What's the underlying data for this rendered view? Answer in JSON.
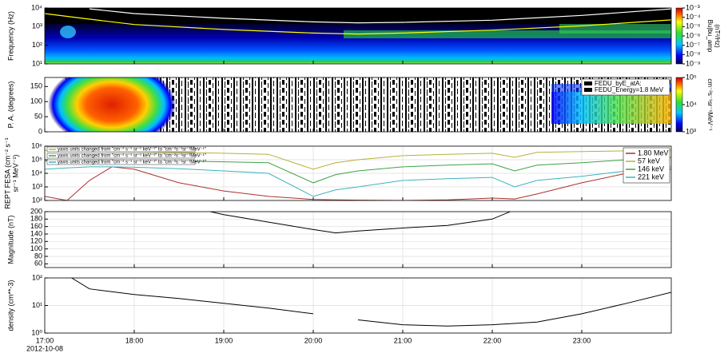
{
  "chart_data": [
    {
      "type": "spectrogram",
      "ylabel": [
        "Frequency (Hz)"
      ],
      "xlim": [
        17,
        24
      ],
      "xticks": [
        17,
        18,
        19,
        20,
        21,
        22,
        23
      ],
      "ylim": [
        10,
        10000
      ],
      "log_y": true,
      "yticks": [
        {
          "value": 10,
          "label": "10¹"
        },
        {
          "value": 100,
          "label": "10²"
        },
        {
          "value": 1000,
          "label": "10³"
        },
        {
          "value": 10000,
          "label": "10⁴"
        }
      ],
      "colorbar": {
        "label": [
          "Bu|bu_amp",
          "(nT²/Hz)"
        ],
        "zlim": [
          1e-09,
          0.001
        ],
        "zticks": [
          {
            "value": 1e-09,
            "label": "10⁻⁹"
          },
          {
            "value": 1e-08,
            "label": "10⁻⁸"
          },
          {
            "value": 1e-07,
            "label": "10⁻⁷"
          },
          {
            "value": 1e-06,
            "label": "10⁻⁶"
          },
          {
            "value": 1e-05,
            "label": "10⁻⁵"
          },
          {
            "value": 0.0001,
            "label": "10⁻⁴"
          },
          {
            "value": 0.001,
            "label": "10⁻³"
          }
        ]
      },
      "series": [
        {
          "color": "#ffffff",
          "x": [
            17.5,
            18,
            19,
            20,
            20.5,
            21,
            22,
            23,
            23.5,
            24
          ],
          "values": [
            9000,
            5000,
            2800,
            1800,
            1600,
            1700,
            2200,
            4000,
            6000,
            9000
          ]
        },
        {
          "color": "#ffff00",
          "x": [
            17,
            17.5,
            18,
            19,
            20,
            20.5,
            21,
            22,
            23,
            24
          ],
          "values": [
            5000,
            2500,
            1300,
            700,
            450,
            400,
            450,
            650,
            1100,
            2300
          ]
        }
      ]
    },
    {
      "type": "spectrogram",
      "ylabel": [
        "P. A. (degrees)"
      ],
      "xlim": [
        17,
        24
      ],
      "xticks": [
        17,
        18,
        19,
        20,
        21,
        22,
        23
      ],
      "ylim": [
        0,
        180
      ],
      "yticks": [
        0,
        50,
        100,
        150
      ],
      "colorbar": {
        "label": [
          "cm⁻²s⁻¹sr⁻¹MeV⁻¹"
        ],
        "zlim": [
          1000,
          100000
        ],
        "zticks": [
          {
            "value": 1000,
            "label": "10³"
          },
          {
            "value": 10000,
            "label": "10⁴"
          },
          {
            "value": 100000,
            "label": "10⁵"
          }
        ]
      },
      "legend": [
        "FEDU_byE_atA:",
        "FEDU_Energy=1.8 MeV"
      ]
    },
    {
      "type": "line",
      "ylabel": [
        "REPT FESA (cm⁻² s⁻¹",
        "sr⁻¹ MeV⁻¹)"
      ],
      "xlim": [
        17,
        24
      ],
      "xticks": [
        17,
        18,
        19,
        20,
        21,
        22,
        23
      ],
      "ylim": [
        100,
        1000000
      ],
      "log_y": true,
      "grid": true,
      "legend_position": "upper right",
      "yticks": [
        {
          "value": 100,
          "label": "10²"
        },
        {
          "value": 1000,
          "label": "10³"
        },
        {
          "value": 10000,
          "label": "10⁴"
        },
        {
          "value": 100000,
          "label": "10⁵"
        },
        {
          "value": 1000000,
          "label": "10⁶"
        }
      ],
      "annotations": [
        "yaxis units changed from \"cm⁻² s⁻¹ sr⁻¹ keV⁻¹\" to \"cm⁻²s⁻¹sr⁻¹MeV⁻¹\"",
        "yaxis units changed from \"cm⁻² s⁻¹ sr⁻¹ keV⁻¹\" to \"cm⁻²s⁻¹sr⁻¹MeV⁻¹\"",
        "yaxis units changed from \"cm⁻² s⁻¹ sr⁻¹ keV⁻¹\" to \"cm⁻²s⁻¹sr⁻¹MeV⁻¹\""
      ],
      "x": [
        17,
        17.25,
        17.5,
        17.75,
        18,
        18.5,
        19,
        19.5,
        20,
        20.25,
        20.5,
        21,
        21.5,
        22,
        22.25,
        22.5,
        23,
        23.5,
        24
      ],
      "series": [
        {
          "name": "1.80 MeV",
          "color": "#a8332b",
          "values": [
            200,
            100,
            3000,
            30000,
            20000,
            2000,
            500,
            200,
            120,
            110,
            105,
            100,
            110,
            150,
            130,
            300,
            2000,
            10000,
            20000
          ]
        },
        {
          "name": "57 keV",
          "color": "#b3b33a",
          "values": [
            500000,
            450000,
            450000,
            400000,
            400000,
            350000,
            300000,
            250000,
            20000,
            60000,
            100000,
            200000,
            250000,
            300000,
            150000,
            350000,
            400000,
            450000,
            500000
          ]
        },
        {
          "name": "146 keV",
          "color": "#3ea346",
          "values": [
            80000,
            90000,
            100000,
            100000,
            90000,
            80000,
            70000,
            60000,
            2000,
            8000,
            15000,
            30000,
            40000,
            50000,
            15000,
            40000,
            60000,
            100000,
            150000
          ]
        },
        {
          "name": "221 keV",
          "color": "#3ab4bc",
          "values": [
            20000,
            25000,
            30000,
            30000,
            28000,
            22000,
            15000,
            10000,
            200,
            600,
            1000,
            3000,
            4000,
            5000,
            1000,
            3000,
            6000,
            15000,
            30000
          ]
        }
      ]
    },
    {
      "type": "line",
      "ylabel": [
        "Magnitude (nT)"
      ],
      "xlim": [
        17,
        24
      ],
      "xticks": [
        17,
        18,
        19,
        20,
        21,
        22,
        23
      ],
      "ylim": [
        50,
        200
      ],
      "yticks": [
        60,
        80,
        100,
        120,
        140,
        160,
        180,
        200
      ],
      "grid": true,
      "x": [
        18.85,
        19,
        19.5,
        20,
        20.25,
        20.5,
        21,
        21.5,
        22,
        22.2
      ],
      "series": [
        {
          "color": "#000000",
          "values": [
            200,
            192,
            172,
            152,
            143,
            148,
            156,
            163,
            180,
            200
          ]
        }
      ]
    },
    {
      "type": "line",
      "ylabel": [
        "density (cm**-3)"
      ],
      "xlim": [
        17,
        24
      ],
      "log_y": true,
      "grid": true,
      "ylim": [
        1,
        100
      ],
      "yticks": [
        {
          "value": 1,
          "label": "10⁰"
        },
        {
          "value": 10,
          "label": "10¹"
        },
        {
          "value": 100,
          "label": "10²"
        }
      ],
      "xticks": [
        {
          "value": 17,
          "label": "17:00"
        },
        {
          "value": 18,
          "label": "18:00"
        },
        {
          "value": 19,
          "label": "19:00"
        },
        {
          "value": 20,
          "label": "20:00"
        },
        {
          "value": 21,
          "label": "21:00"
        },
        {
          "value": 22,
          "label": "22:00"
        },
        {
          "value": 23,
          "label": "23:00"
        }
      ],
      "date": "2012-10-08",
      "x": [
        17.3,
        17.5,
        18,
        18.5,
        19,
        19.5,
        20,
        20.25,
        20.5,
        21,
        21.5,
        22,
        22.5,
        23,
        23.5,
        24
      ],
      "series": [
        {
          "color": "#000000",
          "values": [
            100,
            40,
            25,
            18,
            12,
            8,
            5,
            null,
            3,
            2,
            1.8,
            2,
            2.5,
            5,
            12,
            30
          ]
        }
      ]
    }
  ]
}
